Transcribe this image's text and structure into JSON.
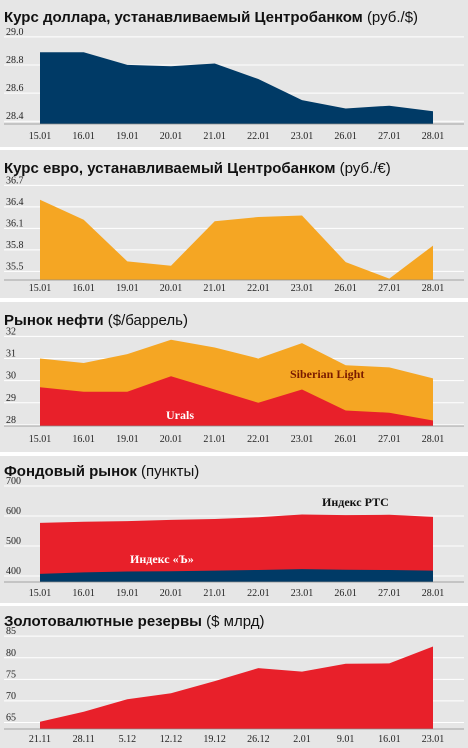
{
  "chart_data": [
    {
      "type": "area",
      "title": "Курс доллара, устанавливаемый Центробанком",
      "unit": "(руб./$)",
      "categories": [
        "15.01",
        "16.01",
        "19.01",
        "20.01",
        "21.01",
        "22.01",
        "23.01",
        "26.01",
        "27.01",
        "28.01"
      ],
      "series": [
        {
          "values": [
            28.89,
            28.89,
            28.8,
            28.79,
            28.81,
            28.7,
            28.55,
            28.49,
            28.51,
            28.47
          ],
          "color": "#003a66"
        }
      ],
      "yticks": [
        "29.0",
        "28.8",
        "28.6",
        "28.4"
      ],
      "ylim": [
        28.38,
        29.02
      ],
      "grid": true
    },
    {
      "type": "area",
      "title": "Курс евро, устанавливаемый Центробанком",
      "unit": "(руб./€)",
      "categories": [
        "15.01",
        "16.01",
        "19.01",
        "20.01",
        "21.01",
        "22.01",
        "23.01",
        "26.01",
        "27.01",
        "28.01"
      ],
      "series": [
        {
          "values": [
            36.5,
            36.22,
            35.64,
            35.58,
            36.2,
            36.26,
            36.28,
            35.63,
            35.4,
            35.86
          ],
          "color": "#f5a623"
        }
      ],
      "yticks": [
        "36.7",
        "36.4",
        "36.1",
        "35.8",
        "35.5"
      ],
      "ylim": [
        35.38,
        36.72
      ],
      "grid": true
    },
    {
      "type": "area",
      "title": "Рынок нефти",
      "unit": "($/баррель)",
      "categories": [
        "15.01",
        "16.01",
        "19.01",
        "20.01",
        "21.01",
        "22.01",
        "23.01",
        "26.01",
        "27.01",
        "28.01"
      ],
      "series": [
        {
          "name": "Siberian Light",
          "values": [
            31.0,
            30.8,
            31.2,
            31.85,
            31.5,
            31.0,
            31.7,
            30.7,
            30.6,
            30.1
          ],
          "color": "#f5a623"
        },
        {
          "name": "Urals",
          "values": [
            29.7,
            29.5,
            29.5,
            30.2,
            29.6,
            29.0,
            29.6,
            28.65,
            28.55,
            28.2
          ],
          "color": "#e8202a"
        }
      ],
      "yticks": [
        "32",
        "31",
        "30",
        "29",
        "28"
      ],
      "ylim": [
        27.95,
        32.2
      ],
      "grid": true
    },
    {
      "type": "area",
      "title": "Фондовый рынок",
      "unit": "(пункты)",
      "categories": [
        "15.01",
        "16.01",
        "19.01",
        "20.01",
        "21.01",
        "22.01",
        "23.01",
        "26.01",
        "27.01",
        "28.01"
      ],
      "series": [
        {
          "name": "Индекс РТС",
          "values": [
            577,
            581,
            583,
            587,
            590,
            596,
            605,
            603,
            604,
            597
          ],
          "color": "#e8202a"
        },
        {
          "name": "Индекс «Ъ»",
          "values": [
            407,
            412,
            415,
            416,
            418,
            420,
            423,
            421,
            420,
            418
          ],
          "color": "#003a66"
        }
      ],
      "yticks": [
        "700",
        "600",
        "500",
        "400"
      ],
      "ylim": [
        380,
        700
      ],
      "grid": true
    },
    {
      "type": "area",
      "title": "Золотовалютные резервы",
      "unit": "($ млрд)",
      "categories": [
        "21.11",
        "28.11",
        "5.12",
        "12.12",
        "19.12",
        "26.12",
        "2.01",
        "9.01",
        "16.01",
        "23.01"
      ],
      "series": [
        {
          "values": [
            65.2,
            67.5,
            70.4,
            71.8,
            74.6,
            77.6,
            76.8,
            78.6,
            78.7,
            82.6
          ],
          "color": "#e8202a"
        }
      ],
      "yticks": [
        "85",
        "80",
        "75",
        "70",
        "65"
      ],
      "ylim": [
        63.5,
        85.5
      ],
      "grid": true
    }
  ]
}
